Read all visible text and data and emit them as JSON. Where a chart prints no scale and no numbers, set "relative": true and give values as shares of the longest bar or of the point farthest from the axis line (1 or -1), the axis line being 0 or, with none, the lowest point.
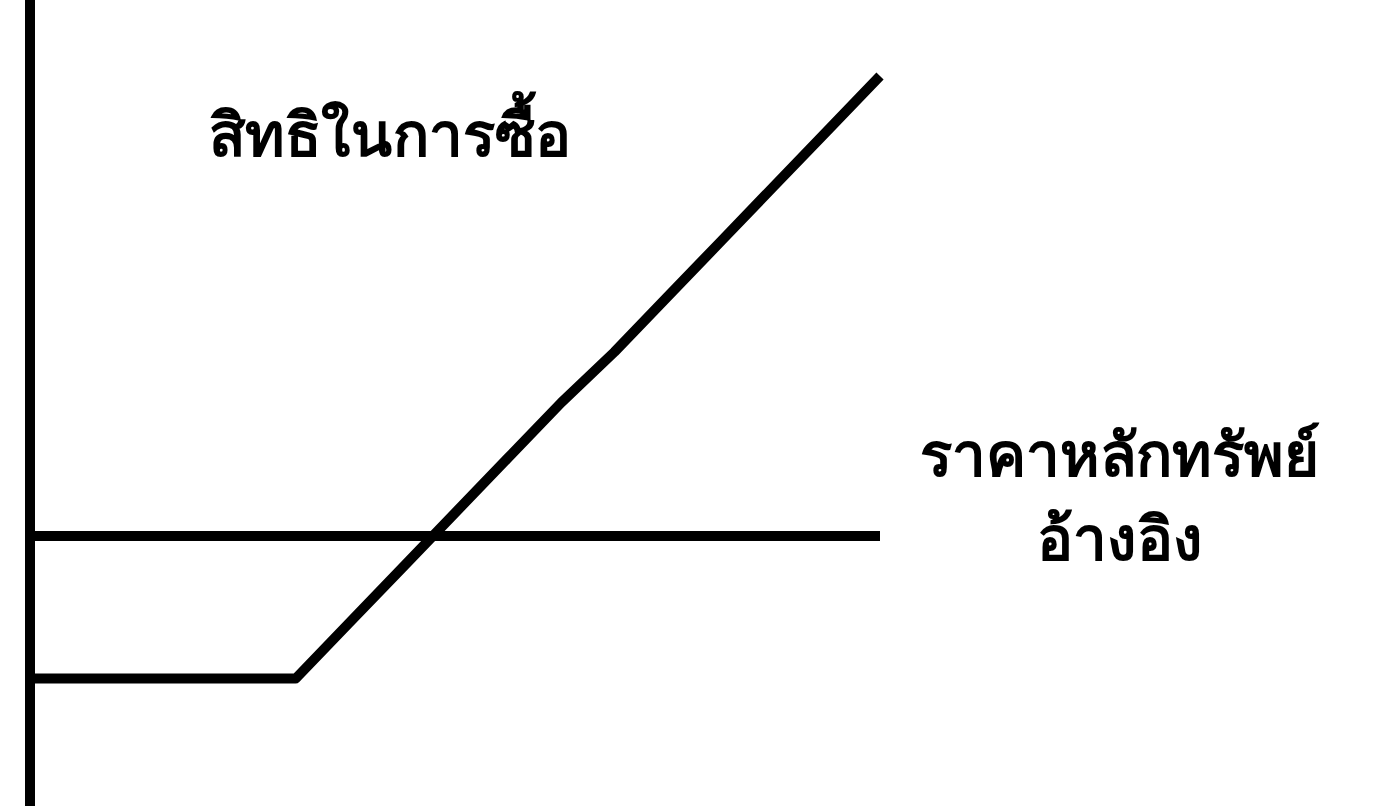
{
  "chart_data": {
    "type": "line",
    "relative": true,
    "title": "สิทธิในการซื้อ",
    "xlabel": "ราคาหลักทรัพย์ อ้างอิง",
    "categories": [
      null,
      null,
      null,
      null,
      null,
      null,
      null,
      null,
      null,
      null,
      null,
      null,
      null,
      null,
      null,
      null,
      null
    ],
    "series": [
      {
        "color": "#000000",
        "values": [
          -0.31,
          -0.31,
          -0.31,
          -0.31,
          -0.31,
          -0.31,
          -0.19,
          -0.07,
          0.05,
          0.17,
          0.29,
          0.4,
          0.52,
          0.64,
          0.76,
          0.88,
          1
        ]
      }
    ],
    "marker": "none",
    "line_style": "solid"
  }
}
